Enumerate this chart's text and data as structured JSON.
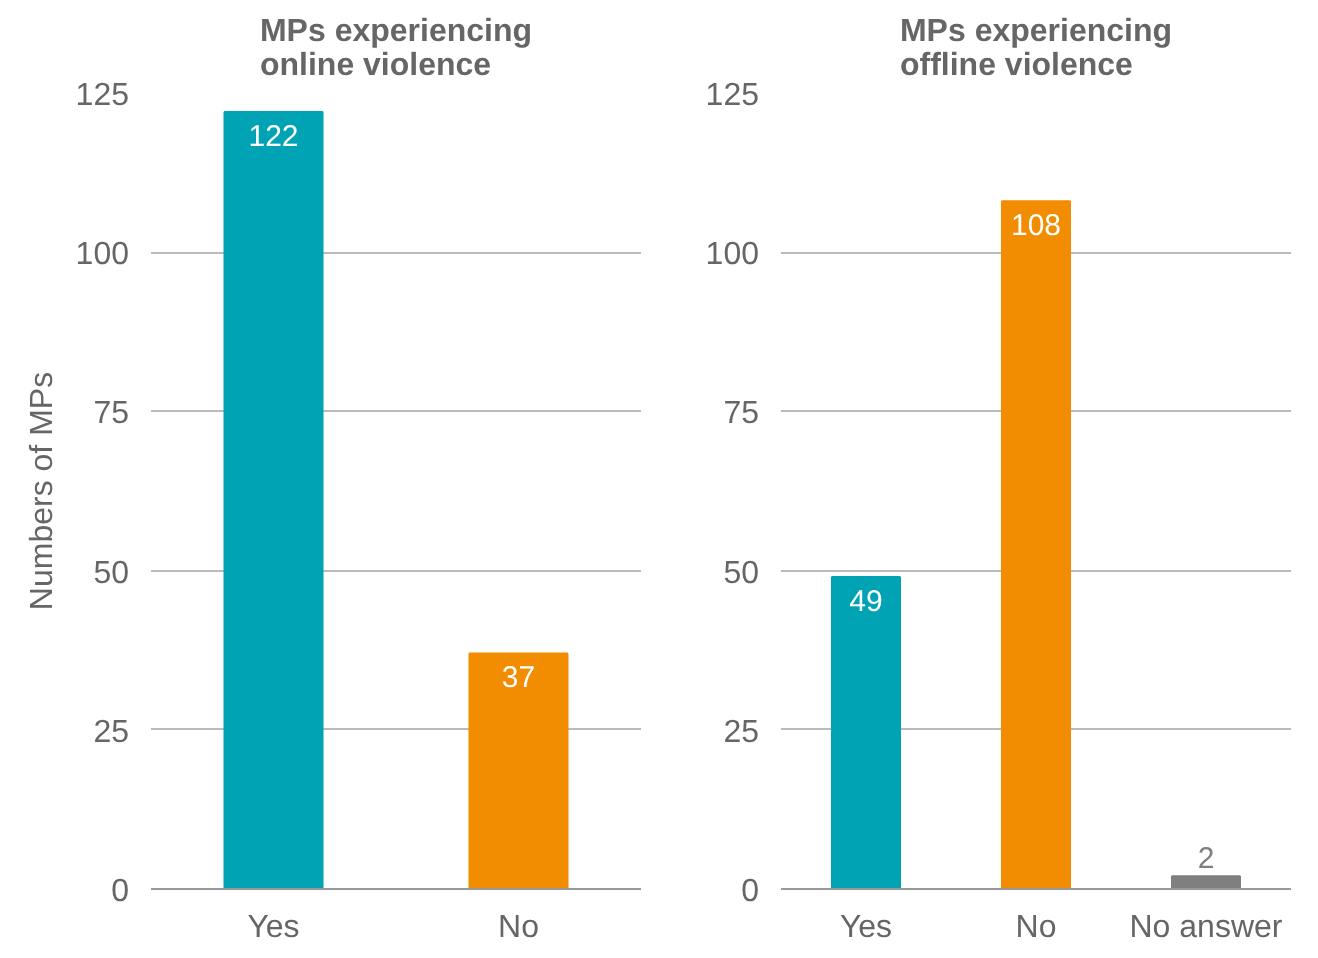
{
  "chart_data": [
    {
      "type": "bar",
      "title": "MPs experiencing\nonline violence",
      "ylabel": "Numbers of MPs",
      "categories": [
        "Yes",
        "No"
      ],
      "values": [
        122,
        37
      ],
      "colors": [
        "#00a3b4",
        "#f28c00"
      ],
      "ylim": [
        0,
        125
      ],
      "yticks": [
        0,
        25,
        50,
        75,
        100,
        125
      ],
      "grid": "y",
      "data_labels": true
    },
    {
      "type": "bar",
      "title": "MPs experiencing\noffline violence",
      "categories": [
        "Yes",
        "No",
        "No answer"
      ],
      "values": [
        49,
        108,
        2
      ],
      "colors": [
        "#00a3b4",
        "#f28c00",
        "#7f7f7f"
      ],
      "ylim": [
        0,
        125
      ],
      "yticks": [
        0,
        25,
        50,
        75,
        100,
        125
      ],
      "grid": "y",
      "data_labels": true
    }
  ]
}
